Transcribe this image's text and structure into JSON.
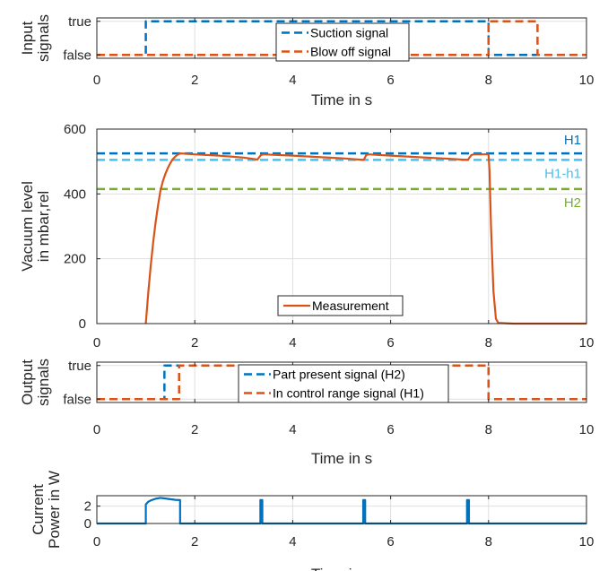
{
  "colors": {
    "blue": "#0072BD",
    "orange": "#D95319",
    "lightblue": "#4DBEEE",
    "green": "#77AC30"
  },
  "chart_data": [
    {
      "id": "inputs",
      "type": "line",
      "xlabel": "Time in s",
      "ylabel": [
        "Input",
        "signals"
      ],
      "xlim": [
        0,
        10
      ],
      "ylim": [
        -0.1,
        1.1
      ],
      "xticks": [
        "0",
        "2",
        "4",
        "6",
        "8",
        "10"
      ],
      "yticks": [
        {
          "v": 0,
          "label": "false"
        },
        {
          "v": 1,
          "label": "true"
        }
      ],
      "grid": true,
      "legend_position": "top-center",
      "series": [
        {
          "name": "Suction signal",
          "color": "blue",
          "style": "dashed",
          "width": 2.5,
          "x": [
            0,
            1,
            1,
            8,
            8,
            10
          ],
          "y": [
            0,
            0,
            1,
            1,
            0,
            0
          ]
        },
        {
          "name": "Blow off signal",
          "color": "orange",
          "style": "dashed",
          "width": 2.5,
          "x": [
            0,
            8,
            8,
            9,
            9,
            10
          ],
          "y": [
            0,
            0,
            1,
            1,
            0,
            0
          ]
        }
      ]
    },
    {
      "id": "vacuum",
      "type": "line",
      "xlabel": "",
      "ylabel": [
        "Vacuum level",
        "in mbar,rel"
      ],
      "xlim": [
        0,
        10
      ],
      "ylim": [
        0,
        600
      ],
      "xticks": [
        "0",
        "2",
        "4",
        "6",
        "8",
        "10"
      ],
      "yticks": [
        {
          "v": 0,
          "label": "0"
        },
        {
          "v": 200,
          "label": "200"
        },
        {
          "v": 400,
          "label": "400"
        },
        {
          "v": 600,
          "label": "600"
        }
      ],
      "grid": true,
      "legend_position": "bottom-center",
      "hlines": [
        {
          "y": 525,
          "label": "H1",
          "color": "blue"
        },
        {
          "y": 505,
          "label": "H1-h1",
          "color": "lightblue"
        },
        {
          "y": 415,
          "label": "H2",
          "color": "green"
        }
      ],
      "series": [
        {
          "name": "Measurement",
          "color": "orange",
          "style": "solid",
          "width": 2.2,
          "x": [
            1.0,
            1.05,
            1.1,
            1.15,
            1.2,
            1.25,
            1.3,
            1.35,
            1.4,
            1.45,
            1.5,
            1.55,
            1.6,
            1.65,
            1.7,
            2.0,
            2.5,
            3.0,
            3.28,
            3.3,
            3.35,
            3.4,
            4.0,
            4.5,
            5.0,
            5.45,
            5.47,
            5.5,
            5.55,
            6.0,
            6.5,
            7.0,
            7.58,
            7.6,
            7.65,
            7.7,
            7.75,
            7.9,
            8.0,
            8.02,
            8.05,
            8.1,
            8.15,
            8.2,
            8.5,
            9.0,
            9.5,
            10.0
          ],
          "y": [
            0,
            95,
            178,
            250,
            312,
            365,
            411,
            440,
            462,
            480,
            495,
            507,
            515,
            521,
            525,
            522,
            518,
            512,
            506,
            510,
            520,
            522,
            518,
            514,
            510,
            505,
            510,
            520,
            522,
            518,
            514,
            510,
            505,
            510,
            520,
            522,
            522,
            522,
            522,
            470,
            300,
            100,
            15,
            2,
            0,
            0,
            0,
            0
          ]
        }
      ]
    },
    {
      "id": "outputs",
      "type": "line",
      "xlabel": "Time in s",
      "ylabel": [
        "Output",
        "signals"
      ],
      "xlim": [
        0,
        10
      ],
      "ylim": [
        -0.1,
        1.1
      ],
      "xticks": [
        "0",
        "2",
        "4",
        "6",
        "8",
        "10"
      ],
      "yticks": [
        {
          "v": 0,
          "label": "false"
        },
        {
          "v": 1,
          "label": "true"
        }
      ],
      "grid": true,
      "legend_position": "top-center",
      "series": [
        {
          "name": "Part present signal (H2)",
          "color": "blue",
          "style": "dashed",
          "width": 2.5,
          "x": [
            0,
            1.38,
            1.38,
            8.0,
            8.0,
            10
          ],
          "y": [
            0,
            0,
            1,
            1,
            0,
            0
          ]
        },
        {
          "name": "In control range signal (H1)",
          "color": "orange",
          "style": "dashed",
          "width": 2.5,
          "x": [
            0,
            1.68,
            1.68,
            8.0,
            8.0,
            10
          ],
          "y": [
            0,
            0,
            1,
            1,
            0,
            0
          ]
        }
      ]
    },
    {
      "id": "power",
      "type": "line",
      "xlabel": "Time in s",
      "ylabel": [
        "Current",
        "Power in W"
      ],
      "xlim": [
        0,
        10
      ],
      "ylim": [
        0,
        3.2
      ],
      "xticks": [
        "0",
        "2",
        "4",
        "6",
        "8",
        "10"
      ],
      "yticks": [
        {
          "v": 0,
          "label": "0"
        },
        {
          "v": 2,
          "label": "2"
        }
      ],
      "grid": true,
      "legend_position": "none",
      "series": [
        {
          "name": "",
          "color": "blue",
          "style": "solid",
          "width": 2.2,
          "x": [
            0,
            1.0,
            1.0,
            1.05,
            1.1,
            1.2,
            1.3,
            1.4,
            1.5,
            1.6,
            1.7,
            1.7,
            3.34,
            3.34,
            3.38,
            3.38,
            5.44,
            5.44,
            5.48,
            5.48,
            7.56,
            7.56,
            7.6,
            7.6,
            10
          ],
          "y": [
            0,
            0,
            2.2,
            2.5,
            2.65,
            2.85,
            2.95,
            2.88,
            2.8,
            2.72,
            2.7,
            0,
            0,
            2.7,
            2.7,
            0,
            0,
            2.7,
            2.7,
            0,
            0,
            2.7,
            2.7,
            0,
            0
          ]
        }
      ]
    }
  ]
}
